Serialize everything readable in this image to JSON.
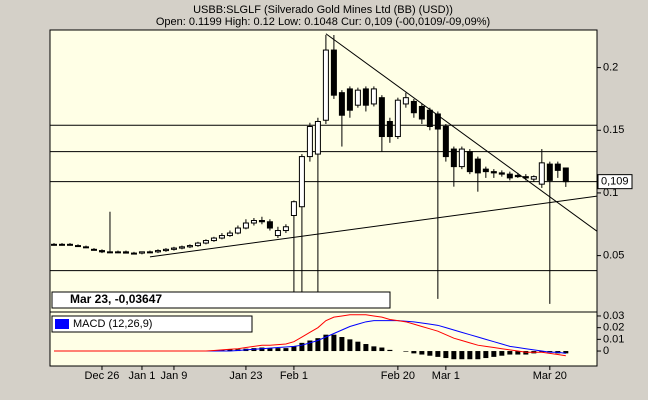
{
  "chart_data": [
    {
      "type": "candlestick",
      "title": "USBB:SLGLF (Silverado Gold Mines Ltd (BB) (USD))",
      "subtitle": "Open: 0.1199 High: 0.12 Low: 0.1048 Cur: 0,109 (-00,0109/-09,09%)",
      "categories": [
        null,
        null,
        null,
        null,
        null,
        null,
        "Dec 26",
        null,
        null,
        null,
        null,
        "Jan 1",
        null,
        null,
        null,
        "Jan 9",
        null,
        null,
        null,
        null,
        null,
        null,
        null,
        null,
        "Jan 23",
        null,
        null,
        null,
        null,
        null,
        "Feb 1",
        null,
        null,
        null,
        null,
        null,
        null,
        null,
        null,
        null,
        null,
        null,
        null,
        "Feb 20",
        null,
        null,
        null,
        null,
        null,
        "Mar 1",
        null,
        null,
        null,
        null,
        null,
        null,
        null,
        null,
        null,
        null,
        null,
        null,
        "Mar 20",
        null,
        null
      ],
      "open": [
        0.059,
        0.059,
        0.059,
        0.058,
        0.057,
        0.055,
        0.054,
        0.053,
        0.053,
        0.053,
        0.052,
        0.052,
        0.053,
        0.053,
        0.054,
        0.055,
        0.056,
        0.057,
        0.058,
        0.06,
        0.062,
        0.064,
        0.066,
        0.068,
        0.072,
        0.076,
        0.078,
        0.077,
        0.066,
        0.07,
        0.082,
        0.089,
        0.129,
        0.131,
        0.158,
        0.214,
        0.18,
        0.183,
        0.17,
        0.183,
        0.171,
        0.176,
        0.157,
        0.145,
        0.171,
        0.173,
        0.169,
        0.166,
        0.163,
        0.153,
        0.135,
        0.121,
        0.133,
        0.127,
        0.119,
        0.117,
        0.116,
        0.115,
        0.114,
        0.113,
        0.111,
        0.107,
        0.123,
        0.123,
        0.1199
      ],
      "high": [
        0.06,
        0.06,
        0.06,
        0.059,
        0.058,
        0.056,
        0.055,
        0.085,
        0.054,
        0.054,
        0.053,
        0.053,
        0.054,
        0.055,
        0.056,
        0.057,
        0.058,
        0.059,
        0.061,
        0.063,
        0.065,
        0.068,
        0.07,
        0.074,
        0.079,
        0.08,
        0.081,
        0.079,
        0.073,
        0.075,
        0.094,
        0.131,
        0.156,
        0.16,
        0.226,
        0.226,
        0.182,
        0.185,
        0.184,
        0.185,
        0.185,
        0.178,
        0.16,
        0.176,
        0.18,
        0.175,
        0.171,
        0.168,
        0.165,
        0.155,
        0.137,
        0.137,
        0.135,
        0.129,
        0.121,
        0.119,
        0.118,
        0.117,
        0.116,
        0.115,
        0.114,
        0.135,
        0.125,
        0.125,
        0.12
      ],
      "low": [
        0.058,
        0.058,
        0.058,
        0.057,
        0.056,
        0.054,
        0.052,
        0.052,
        0.052,
        0.052,
        0.051,
        0.051,
        0.052,
        0.052,
        0.053,
        0.054,
        0.055,
        0.056,
        0.057,
        0.059,
        0.061,
        0.063,
        0.065,
        0.067,
        0.071,
        0.074,
        0.075,
        0.07,
        0.064,
        0.068,
        0.0195,
        0.0195,
        0.125,
        0.0195,
        0.155,
        0.175,
        0.137,
        0.16,
        0.168,
        0.165,
        0.169,
        0.133,
        0.14,
        0.143,
        0.168,
        0.16,
        0.155,
        0.15,
        0.0155,
        0.125,
        0.105,
        0.119,
        0.115,
        0.101,
        0.112,
        0.112,
        0.113,
        0.11,
        0.112,
        0.11,
        0.109,
        0.104,
        0.0115,
        0.112,
        0.1048
      ],
      "close": [
        0.059,
        0.059,
        0.059,
        0.058,
        0.057,
        0.055,
        0.053,
        0.053,
        0.053,
        0.052,
        0.052,
        0.053,
        0.053,
        0.054,
        0.055,
        0.056,
        0.057,
        0.058,
        0.06,
        0.062,
        0.064,
        0.066,
        0.068,
        0.072,
        0.076,
        0.078,
        0.077,
        0.072,
        0.07,
        0.073,
        0.093,
        0.129,
        0.153,
        0.157,
        0.214,
        0.178,
        0.162,
        0.166,
        0.182,
        0.17,
        0.183,
        0.145,
        0.145,
        0.174,
        0.176,
        0.164,
        0.159,
        0.153,
        0.151,
        0.129,
        0.121,
        0.135,
        0.117,
        0.116,
        0.117,
        0.116,
        0.115,
        0.112,
        0.113,
        0.112,
        0.113,
        0.124,
        0.11,
        0.118,
        0.109
      ],
      "xlim": [
        -0.5,
        67.9
      ],
      "ylim": [
        0.005,
        0.23
      ],
      "yticks": [
        0.05,
        0.1,
        0.15,
        0.2
      ],
      "levels": [
        0.154,
        0.133,
        0.109,
        0.038
      ],
      "trendlines": [
        {
          "x": [
            34,
            68
          ],
          "y": [
            0.227,
            0.069
          ]
        },
        {
          "x": [
            12,
            68
          ],
          "y": [
            0.049,
            0.0975
          ]
        }
      ],
      "last": {
        "value": 0.109,
        "label": "0,109"
      },
      "color": "#000000"
    },
    {
      "type": "macd",
      "annotation": "Mar 23, -0,03647",
      "xlim": [
        -0.5,
        67.9
      ],
      "ylim": [
        -0.0128,
        0.0334
      ],
      "yticks": [
        0,
        0.01,
        0.02,
        0.03
      ],
      "series": [
        {
          "name": "MACD (12,26,9)",
          "color": "#0000ff",
          "values": [
            0,
            0,
            0,
            0,
            0,
            0,
            0,
            0,
            0,
            0,
            0,
            0,
            0,
            0,
            0,
            0,
            0,
            0,
            0,
            0,
            0,
            0,
            0,
            0.0005,
            0.001,
            0.0015,
            0.002,
            0.0025,
            0.003,
            0.0035,
            0.004,
            0.005,
            0.007,
            0.009,
            0.012,
            0.015,
            0.018,
            0.021,
            0.023,
            0.025,
            0.026,
            0.026,
            0.026,
            0.026,
            0.0255,
            0.025,
            0.024,
            0.023,
            0.022,
            0.02,
            0.018,
            0.016,
            0.014,
            0.012,
            0.01,
            0.008,
            0.006,
            0.004,
            0.003,
            0.002,
            0.001,
            0,
            -0.001,
            -0.001,
            -0.002
          ]
        },
        {
          "color": "#ff0000",
          "values": [
            0,
            0,
            0,
            0,
            0,
            0,
            0,
            0,
            0,
            0,
            0,
            0,
            0,
            0,
            0,
            0,
            0,
            0,
            0,
            0,
            0.0005,
            0.001,
            0.0015,
            0.002,
            0.003,
            0.004,
            0.005,
            0.005,
            0.0055,
            0.006,
            0.008,
            0.012,
            0.016,
            0.02,
            0.026,
            0.029,
            0.03,
            0.031,
            0.031,
            0.031,
            0.03,
            0.029,
            0.027,
            0.026,
            0.025,
            0.023,
            0.021,
            0.019,
            0.017,
            0.014,
            0.011,
            0.009,
            0.007,
            0.005,
            0.004,
            0.003,
            0.002,
            0.001,
            0,
            -0.001,
            -0.001,
            -0.001,
            -0.002,
            -0.003,
            -0.004
          ]
        }
      ],
      "histogram": {
        "color": "#000000",
        "values": [
          0,
          0,
          0,
          0,
          0,
          0,
          0,
          0,
          0,
          0,
          0,
          0,
          0,
          0,
          0,
          0,
          0,
          0,
          0,
          0,
          0.0005,
          0.001,
          0.0015,
          0.0015,
          0.002,
          0.0025,
          0.003,
          0.0025,
          0.0025,
          0.0025,
          0.004,
          0.007,
          0.009,
          0.011,
          0.014,
          0.014,
          0.012,
          0.01,
          0.008,
          0.006,
          0.004,
          0.003,
          0.001,
          0,
          -0.0005,
          -0.002,
          -0.003,
          -0.004,
          -0.005,
          -0.006,
          -0.007,
          -0.007,
          -0.007,
          -0.007,
          -0.006,
          -0.005,
          -0.004,
          -0.003,
          -0.003,
          -0.003,
          -0.002,
          -0.001,
          -0.001,
          -0.002,
          -0.002
        ]
      }
    }
  ]
}
